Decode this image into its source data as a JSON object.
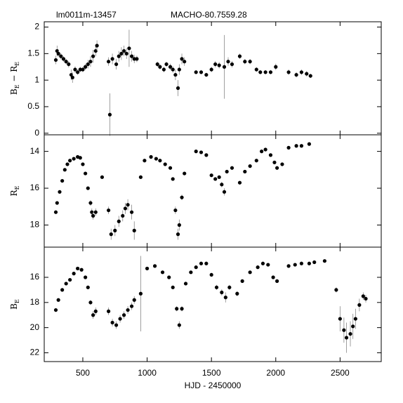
{
  "chart_data": [
    {
      "type": "scatter",
      "annotations": [
        "lm0011m-13457",
        "MACHO-80.7559.28"
      ],
      "ylabel": [
        "B",
        "E",
        " − R",
        "E"
      ],
      "color": "#000000",
      "xlim": [
        200,
        2820
      ],
      "ylim": [
        -0.03,
        2.1
      ],
      "yticks": [
        0,
        0.5,
        1,
        1.5,
        2
      ],
      "x": [
        290,
        300,
        310,
        330,
        350,
        370,
        390,
        410,
        420,
        440,
        460,
        480,
        500,
        520,
        540,
        560,
        580,
        600,
        610,
        700,
        710,
        730,
        760,
        780,
        800,
        820,
        840,
        860,
        880,
        900,
        920,
        1080,
        1100,
        1130,
        1150,
        1180,
        1200,
        1220,
        1240,
        1250,
        1270,
        1290,
        1380,
        1420,
        1460,
        1500,
        1530,
        1560,
        1600,
        1630,
        1660,
        1720,
        1760,
        1800,
        1850,
        1880,
        1920,
        1960,
        2000,
        2100,
        2160,
        2200,
        2240,
        2270
      ],
      "values": [
        1.38,
        1.55,
        1.5,
        1.45,
        1.4,
        1.35,
        1.3,
        1.1,
        1.05,
        1.2,
        1.15,
        1.2,
        1.2,
        1.25,
        1.3,
        1.35,
        1.45,
        1.55,
        1.65,
        1.35,
        0.35,
        1.4,
        1.3,
        1.45,
        1.5,
        1.55,
        1.5,
        1.6,
        1.45,
        1.4,
        1.4,
        1.3,
        1.25,
        1.2,
        1.3,
        1.25,
        1.2,
        1.1,
        0.85,
        1.2,
        1.4,
        1.35,
        1.15,
        1.15,
        1.1,
        1.2,
        1.3,
        1.28,
        1.25,
        1.35,
        1.3,
        1.45,
        1.35,
        1.35,
        1.2,
        1.15,
        1.15,
        1.15,
        1.25,
        1.15,
        1.1,
        1.15,
        1.12,
        1.08
      ],
      "errors": [
        0.08,
        0.1,
        0.06,
        0.06,
        0.05,
        0.05,
        0.06,
        0.1,
        0.1,
        0.06,
        0.05,
        0.05,
        0.05,
        0.06,
        0.08,
        0.1,
        0.12,
        0.1,
        0.1,
        0.08,
        0.4,
        0.1,
        0.1,
        0.1,
        0.12,
        0.1,
        0.1,
        0.35,
        0.1,
        0.08,
        0.06,
        0.05,
        0.05,
        0.05,
        0.05,
        0.06,
        0.06,
        0.1,
        0.15,
        0.1,
        0.1,
        0.08,
        0.04,
        0.04,
        0.04,
        0.05,
        0.06,
        0.06,
        0.6,
        0.08,
        0.06,
        0.05,
        0.05,
        0.05,
        0.04,
        0.04,
        0.04,
        0.04,
        0.06,
        0.05,
        0.05,
        0.05,
        0.05,
        0.04
      ]
    },
    {
      "type": "scatter",
      "ylabel": [
        "R",
        "E"
      ],
      "color": "#000000",
      "xlim": [
        200,
        2820
      ],
      "ylim": [
        19.2,
        13.1
      ],
      "yticks": [
        14,
        16,
        18
      ],
      "x": [
        290,
        300,
        320,
        340,
        360,
        380,
        400,
        430,
        460,
        480,
        500,
        520,
        540,
        560,
        570,
        580,
        600,
        650,
        700,
        720,
        750,
        780,
        810,
        830,
        850,
        880,
        900,
        950,
        980,
        1030,
        1070,
        1100,
        1140,
        1180,
        1200,
        1220,
        1240,
        1250,
        1270,
        1290,
        1380,
        1420,
        1460,
        1500,
        1530,
        1560,
        1580,
        1600,
        1620,
        1660,
        1720,
        1760,
        1800,
        1850,
        1890,
        1920,
        1960,
        1990,
        2010,
        2050,
        2100,
        2160,
        2200,
        2260
      ],
      "values": [
        17.3,
        16.8,
        16.2,
        15.6,
        15.0,
        14.7,
        14.5,
        14.4,
        14.3,
        14.35,
        14.7,
        15.2,
        16.0,
        16.8,
        17.3,
        17.5,
        17.3,
        15.4,
        17.2,
        18.5,
        18.3,
        17.8,
        17.5,
        17.1,
        16.9,
        17.3,
        18.3,
        15.4,
        14.5,
        14.3,
        14.4,
        14.5,
        14.7,
        14.9,
        15.5,
        17.2,
        18.5,
        18.0,
        16.5,
        15.2,
        14.0,
        14.05,
        14.2,
        15.3,
        15.5,
        15.4,
        15.8,
        16.2,
        15.1,
        14.9,
        15.7,
        15.1,
        14.8,
        14.5,
        14.0,
        13.9,
        14.2,
        14.6,
        14.9,
        14.7,
        13.8,
        13.7,
        13.7,
        13.6
      ],
      "errors": [
        0.1,
        0.1,
        0.1,
        0.08,
        0.08,
        0.06,
        0.06,
        0.06,
        0.06,
        0.06,
        0.06,
        0.08,
        0.1,
        0.15,
        0.2,
        0.2,
        0.2,
        0.1,
        0.2,
        0.3,
        0.3,
        0.3,
        0.3,
        0.3,
        0.3,
        0.4,
        0.5,
        0.1,
        0.08,
        0.06,
        0.06,
        0.06,
        0.06,
        0.08,
        0.1,
        0.2,
        0.3,
        0.3,
        0.15,
        0.1,
        0.06,
        0.06,
        0.06,
        0.1,
        0.1,
        0.1,
        0.15,
        0.2,
        0.1,
        0.1,
        0.1,
        0.08,
        0.08,
        0.06,
        0.06,
        0.06,
        0.06,
        0.08,
        0.1,
        0.1,
        0.06,
        0.06,
        0.06,
        0.06
      ]
    },
    {
      "type": "scatter",
      "ylabel": [
        "B",
        "E"
      ],
      "xlabel": "HJD - 2450000",
      "color": "#000000",
      "xlim": [
        200,
        2820
      ],
      "ylim": [
        22.7,
        13.6
      ],
      "yticks": [
        16,
        18,
        20,
        22
      ],
      "xticks": [
        500,
        1000,
        1500,
        2000,
        2500
      ],
      "x": [
        290,
        310,
        340,
        370,
        400,
        430,
        460,
        490,
        520,
        540,
        560,
        580,
        600,
        700,
        730,
        760,
        790,
        820,
        850,
        880,
        900,
        950,
        1000,
        1060,
        1120,
        1170,
        1200,
        1230,
        1250,
        1270,
        1300,
        1340,
        1380,
        1420,
        1460,
        1500,
        1540,
        1580,
        1610,
        1640,
        1700,
        1740,
        1800,
        1860,
        1900,
        1940,
        1980,
        2010,
        2100,
        2150,
        2200,
        2260,
        2300,
        2380,
        2470,
        2500,
        2530,
        2550,
        2580,
        2600,
        2620,
        2650,
        2680,
        2700
      ],
      "values": [
        18.6,
        17.8,
        17.0,
        16.5,
        16.2,
        15.7,
        15.3,
        15.4,
        16.0,
        16.8,
        18.0,
        19.0,
        18.7,
        18.7,
        19.6,
        19.8,
        19.3,
        19.0,
        18.6,
        18.3,
        17.8,
        17.3,
        15.3,
        15.1,
        15.6,
        16.0,
        16.8,
        18.5,
        19.8,
        18.5,
        16.5,
        15.6,
        15.2,
        14.9,
        14.9,
        15.8,
        16.8,
        17.2,
        17.6,
        16.8,
        17.3,
        16.3,
        15.6,
        15.2,
        14.9,
        15.0,
        16.0,
        16.3,
        15.1,
        15.0,
        14.9,
        14.9,
        14.8,
        14.7,
        17.0,
        19.3,
        20.2,
        20.8,
        20.5,
        19.9,
        19.3,
        18.2,
        17.5,
        17.7
      ],
      "errors": [
        0.15,
        0.12,
        0.1,
        0.1,
        0.1,
        0.08,
        0.08,
        0.08,
        0.1,
        0.15,
        0.2,
        0.3,
        0.3,
        0.3,
        0.3,
        0.3,
        0.3,
        0.3,
        0.3,
        0.3,
        0.3,
        3.0,
        0.1,
        0.08,
        0.1,
        0.1,
        0.15,
        0.2,
        0.3,
        0.2,
        0.15,
        0.1,
        0.08,
        0.08,
        0.08,
        0.15,
        0.2,
        0.25,
        0.4,
        0.2,
        0.2,
        0.15,
        0.1,
        0.08,
        0.08,
        0.08,
        0.1,
        0.12,
        0.08,
        0.08,
        0.08,
        0.08,
        0.08,
        0.08,
        0.2,
        1.0,
        1.0,
        1.2,
        1.0,
        1.0,
        0.8,
        0.5,
        0.3,
        0.3
      ]
    }
  ]
}
